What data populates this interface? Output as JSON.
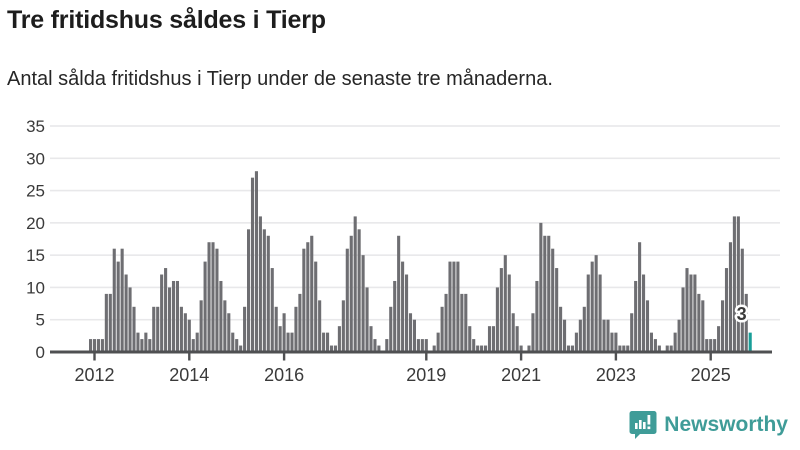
{
  "page": {
    "title": "Tre fritidshus såldes i Tierp",
    "subtitle": "Antal sålda fritidshus i Tierp under de senaste tre månaderna."
  },
  "chart_data": {
    "type": "bar",
    "title": "Tre fritidshus såldes i Tierp",
    "subtitle": "Antal sålda fritidshus i Tierp under de senaste tre månaderna.",
    "xlabel": "",
    "ylabel": "",
    "ylim": [
      0,
      35
    ],
    "yticks": [
      0,
      5,
      10,
      15,
      20,
      25,
      30,
      35
    ],
    "grid": true,
    "x_unit": "month",
    "x_start": "2011-12",
    "xticks": [
      {
        "label": "2012",
        "month_index": 1
      },
      {
        "label": "2014",
        "month_index": 25
      },
      {
        "label": "2016",
        "month_index": 49
      },
      {
        "label": "2019",
        "month_index": 85
      },
      {
        "label": "2021",
        "month_index": 109
      },
      {
        "label": "2023",
        "month_index": 133
      },
      {
        "label": "2025",
        "month_index": 157
      }
    ],
    "values": [
      2,
      2,
      2,
      2,
      9,
      9,
      16,
      14,
      16,
      12,
      10,
      7,
      3,
      2,
      3,
      2,
      7,
      7,
      12,
      13,
      10,
      11,
      11,
      7,
      6,
      5,
      2,
      3,
      8,
      14,
      17,
      17,
      16,
      11,
      8,
      6,
      3,
      2,
      1,
      7,
      19,
      27,
      28,
      21,
      19,
      18,
      13,
      7,
      4,
      6,
      3,
      3,
      7,
      9,
      16,
      17,
      18,
      14,
      8,
      3,
      3,
      1,
      1,
      4,
      8,
      16,
      18,
      21,
      19,
      15,
      10,
      4,
      2,
      1,
      0,
      2,
      7,
      11,
      18,
      14,
      12,
      6,
      5,
      2,
      2,
      2,
      0,
      1,
      3,
      7,
      9,
      14,
      14,
      14,
      9,
      9,
      4,
      2,
      1,
      1,
      1,
      4,
      4,
      10,
      13,
      15,
      12,
      6,
      4,
      1,
      0,
      1,
      6,
      11,
      20,
      18,
      18,
      16,
      13,
      7,
      5,
      1,
      1,
      3,
      5,
      7,
      12,
      14,
      15,
      12,
      5,
      5,
      3,
      3,
      1,
      1,
      1,
      6,
      11,
      17,
      12,
      8,
      3,
      2,
      1,
      0,
      1,
      1,
      3,
      5,
      10,
      13,
      12,
      12,
      9,
      8,
      2,
      2,
      2,
      4,
      8,
      13,
      17,
      21,
      21,
      16,
      9,
      3
    ],
    "bar_color": "#6e6e72",
    "highlight": {
      "index": 167,
      "value": 3,
      "label": "3",
      "color": "#189e98"
    },
    "colors": {
      "gridline": "#e8e8ea",
      "axis": "#4f5052",
      "tick_text": "#3a3a3a",
      "label_text": "#3a3a3a",
      "label_halo": "#ffffff"
    }
  },
  "footer": {
    "brand": "Newsworthy",
    "brand_color": "#3f9c98",
    "brand_icon": "bar-chart-speech-bubble"
  }
}
